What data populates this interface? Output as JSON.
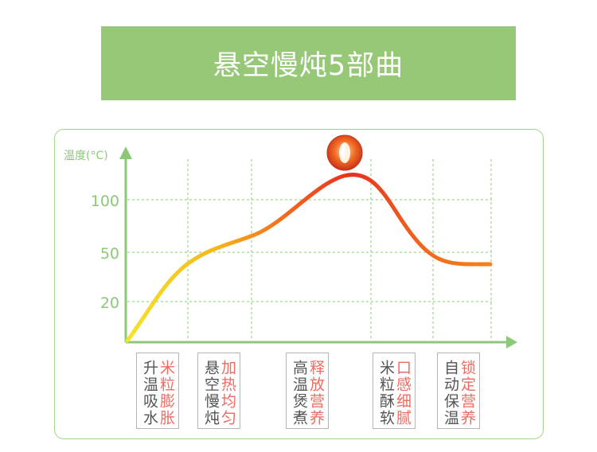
{
  "banner": {
    "title": "悬空慢炖5部曲"
  },
  "chart_data": {
    "type": "line",
    "ylabel": "温度(°C)",
    "yticks": [
      "100",
      "50",
      "20"
    ],
    "stages": [
      {
        "action": "升温吸水",
        "effect": "米粒膨胀"
      },
      {
        "action": "悬空慢炖",
        "effect": "加热均匀"
      },
      {
        "action": "高温煲煮",
        "effect": "释放营养"
      },
      {
        "action": "米粒酥软",
        "effect": "口感细腻"
      },
      {
        "action": "自动保温",
        "effect": "锁定营养"
      }
    ]
  },
  "colors": {
    "banner": "#96c878",
    "axis": "#8ec77a",
    "curve_start": "#f5e52a",
    "curve_mid": "#f06a1e",
    "curve_peak": "#e8301c",
    "label_action": "#555555",
    "label_effect": "#ee6b61"
  },
  "icons": {
    "peak_marker": "rice-grain-icon"
  }
}
